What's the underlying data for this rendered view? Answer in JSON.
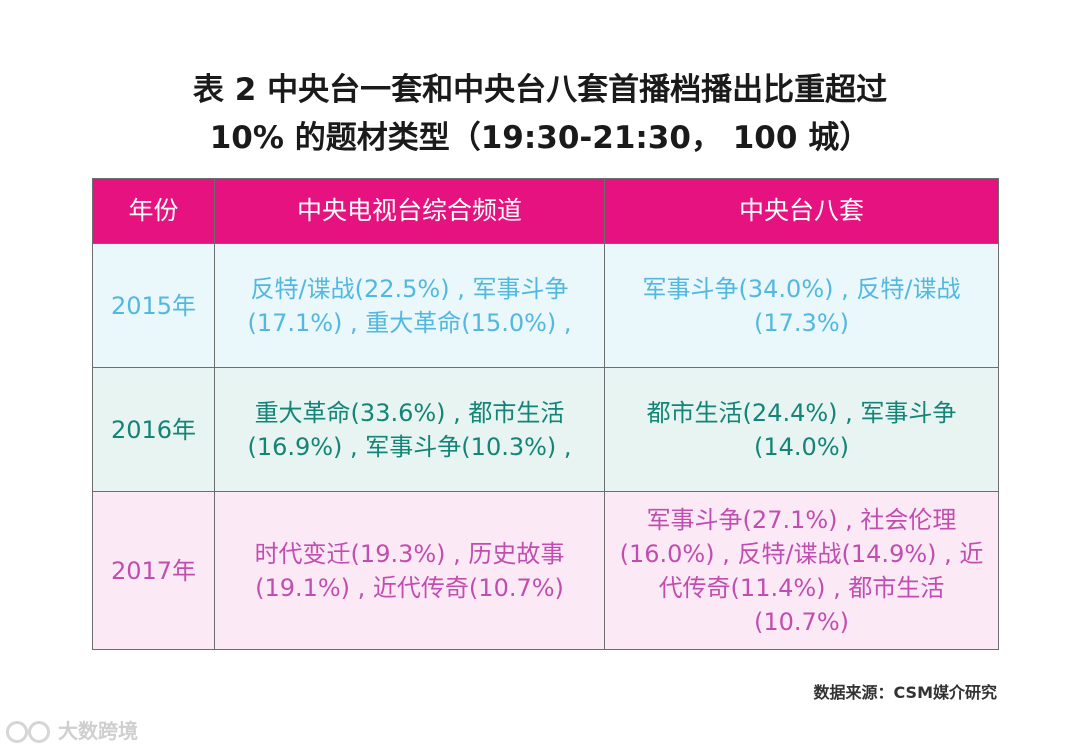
{
  "title": {
    "line1": "表 2  中央台一套和中央台八套首播档播出比重超过",
    "line2": "10% 的题材类型（19:30-21:30，  100 城）"
  },
  "table": {
    "headers": [
      "年份",
      "中央电视台综合频道",
      "中央台八套"
    ],
    "rows": [
      {
        "year": "2015年",
        "cctv1": "反特/谍战(22.5%) , 军事斗争(17.1%) , 重大革命(15.0%) ,",
        "cctv8": "军事斗争(34.0%) , 反特/谍战(17.3%)"
      },
      {
        "year": "2016年",
        "cctv1": "重大革命(33.6%) , 都市生活(16.9%) , 军事斗争(10.3%) ,",
        "cctv8": "都市生活(24.4%) , 军事斗争(14.0%)"
      },
      {
        "year": "2017年",
        "cctv1": "时代变迁(19.3%) , 历史故事(19.1%) , 近代传奇(10.7%)",
        "cctv8": "军事斗争(27.1%) , 社会伦理(16.0%) , 反特/谍战(14.9%) , 近代传奇(11.4%) , 都市生活(10.7%)"
      }
    ]
  },
  "source": "数据来源：CSM媒介研究",
  "watermark": "大数跨境",
  "colors": {
    "header_bg": "#e6127f",
    "row_2015_bg": "#eaf7fb",
    "row_2015_text": "#52b8e0",
    "row_2016_bg": "#e7f4f1",
    "row_2016_text": "#138477",
    "row_2017_bg": "#fbeaf6",
    "row_2017_text": "#c24db0"
  }
}
